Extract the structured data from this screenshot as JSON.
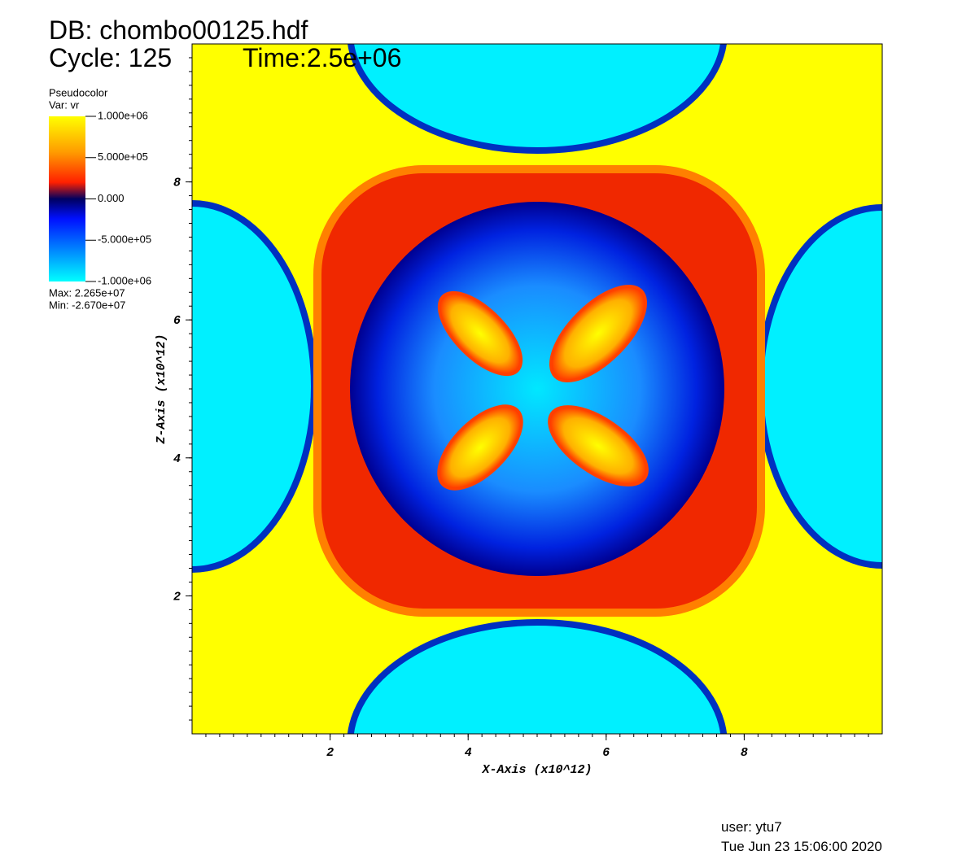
{
  "header": {
    "db": "DB: chombo00125.hdf",
    "cycle": "Cycle: 125",
    "time": "Time:2.5e+06"
  },
  "legend": {
    "title": "Pseudocolor",
    "var": "Var: vr",
    "labels": [
      "1.000e+06",
      "5.000e+05",
      "0.000",
      "-5.000e+05",
      "-1.000e+06"
    ],
    "max": "Max: 2.265e+07",
    "min": "Min: -2.670e+07"
  },
  "axes": {
    "x": {
      "label": "X-Axis (x10^12)",
      "lim": [
        0,
        10
      ],
      "ticks": [
        2,
        4,
        6,
        8
      ]
    },
    "y": {
      "label": "Z-Axis (x10^12)",
      "lim": [
        0,
        10
      ],
      "ticks": [
        2,
        4,
        6,
        8
      ]
    }
  },
  "footer": {
    "user": "user: ytu7",
    "date": "Tue Jun 23 15:06:00 2020"
  }
}
